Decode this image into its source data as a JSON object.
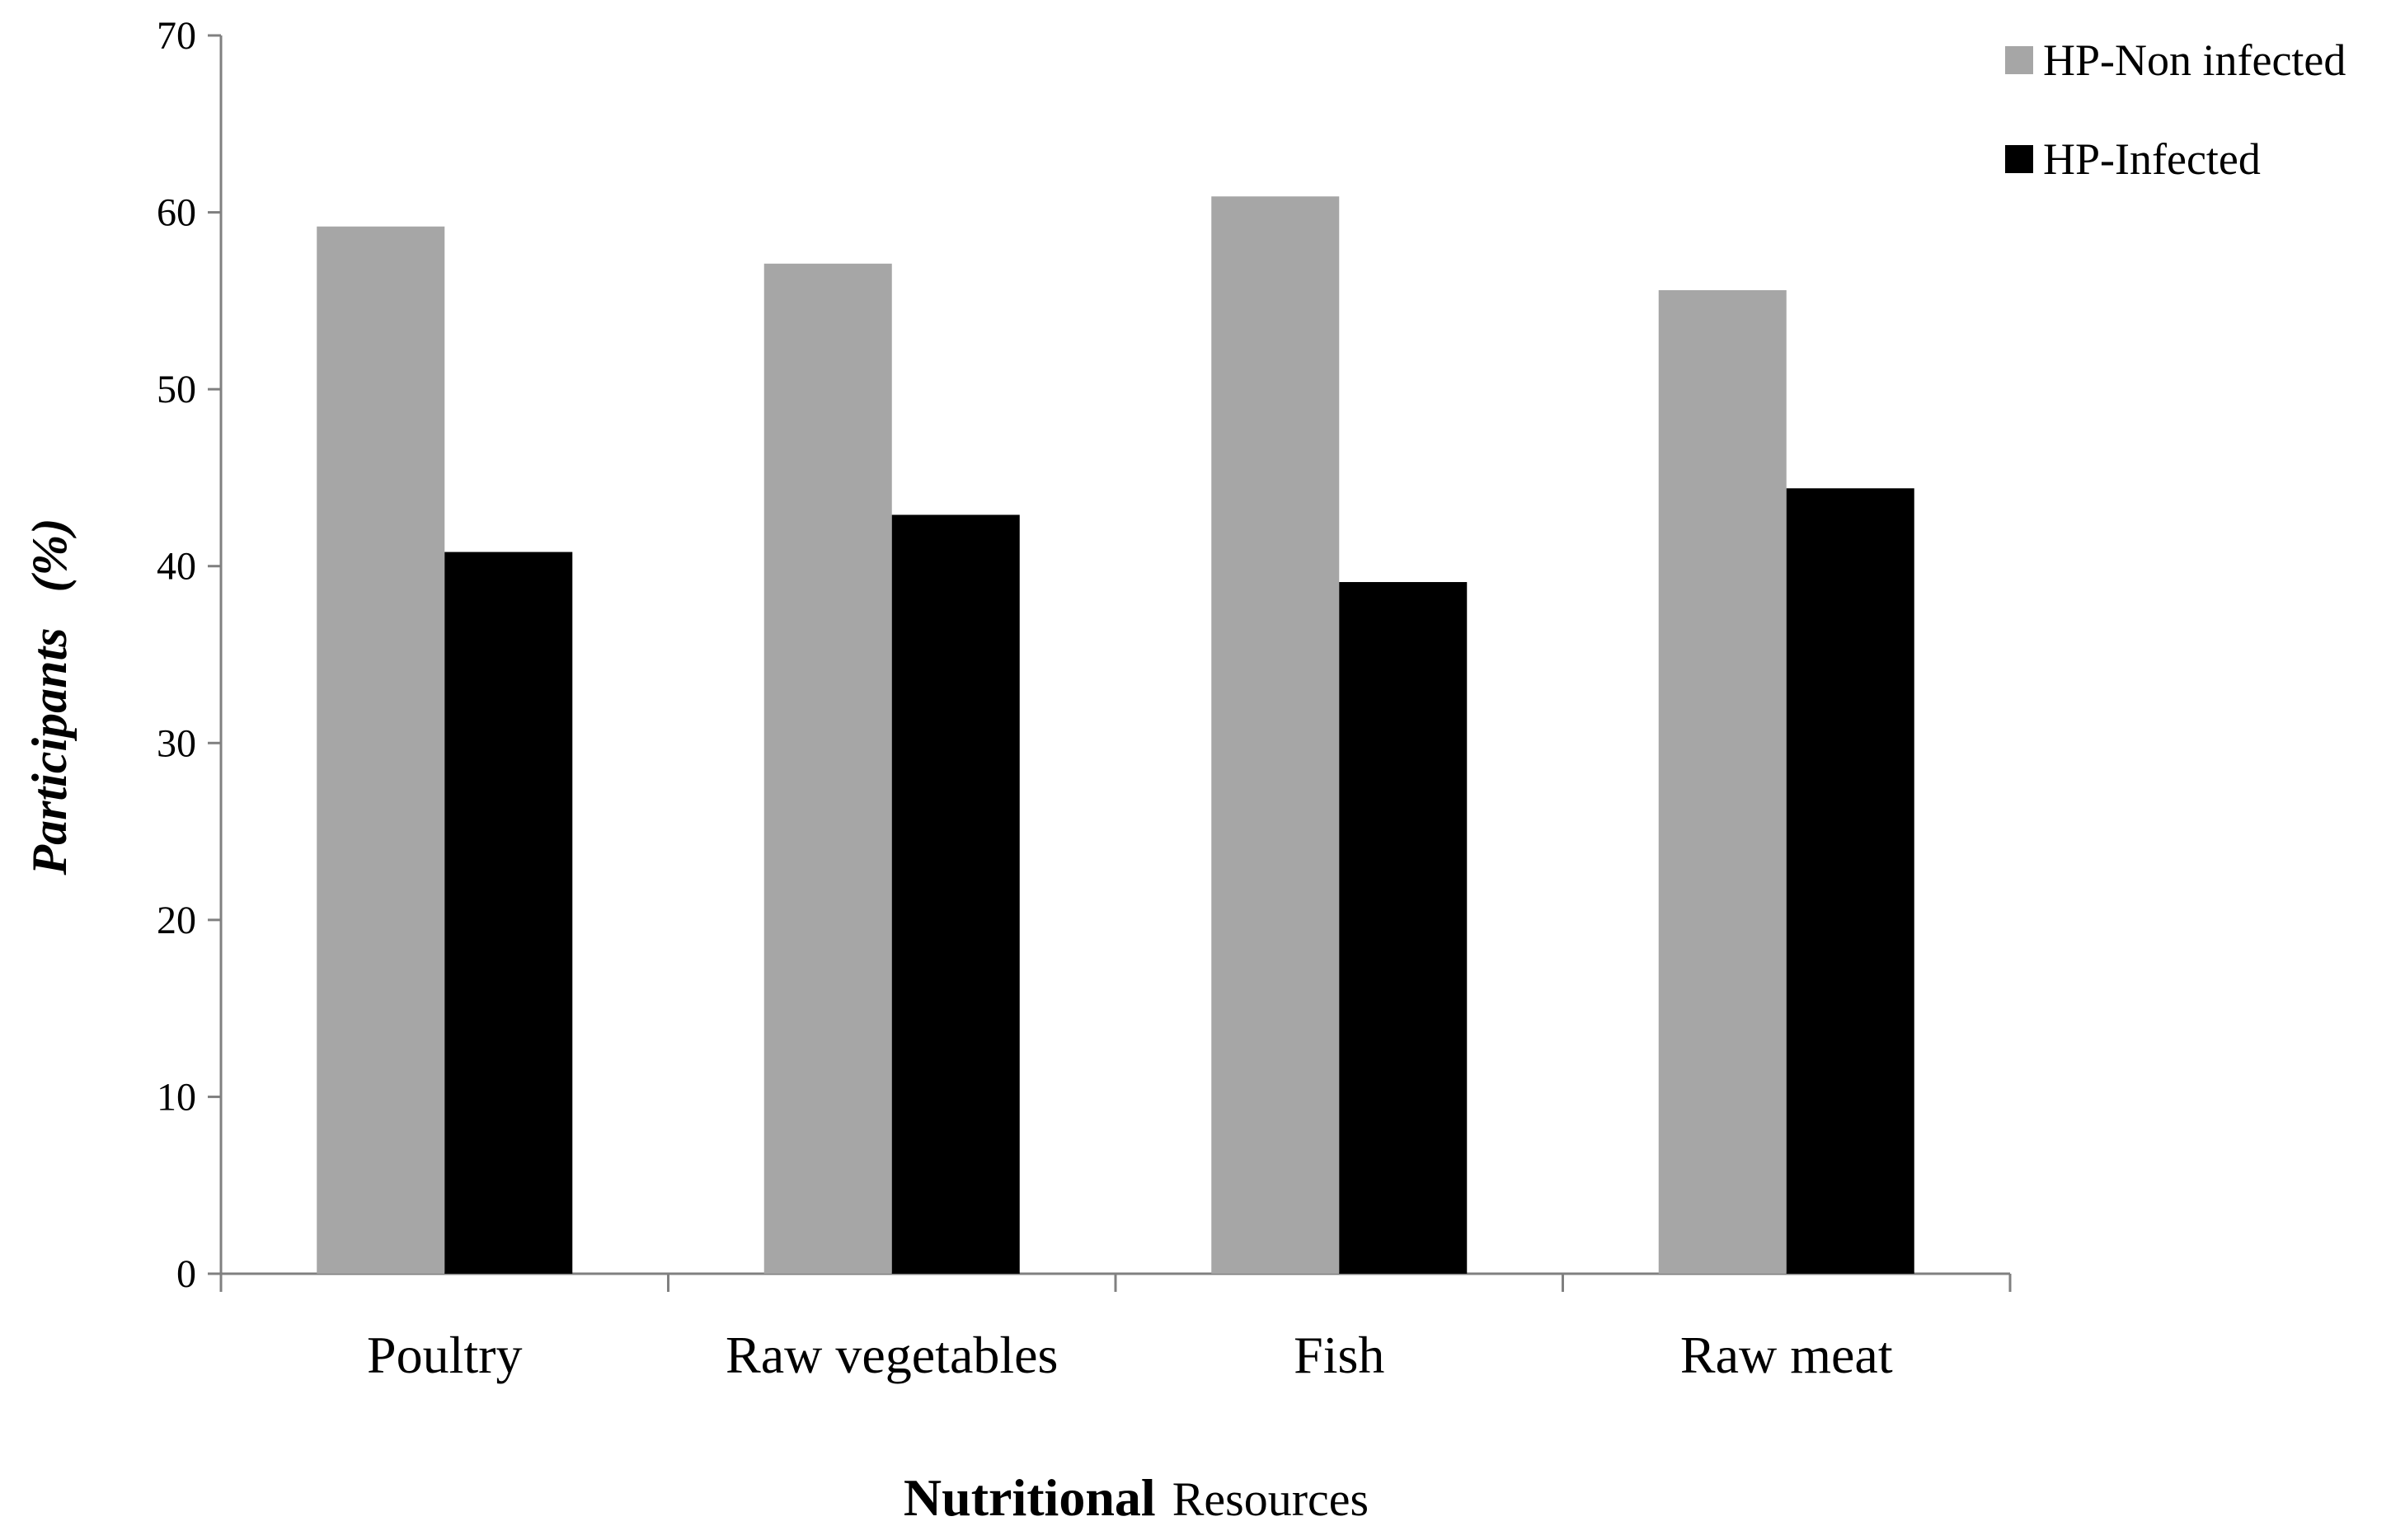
{
  "chart_data": {
    "type": "bar",
    "title": "",
    "categories": [
      "Poultry",
      "Raw vegetables",
      "Fish",
      "Raw meat"
    ],
    "series": [
      {
        "name": "HP-Non infected",
        "color": "#a6a6a6",
        "values": [
          59.2,
          57.1,
          60.9,
          55.6
        ]
      },
      {
        "name": "HP-Infected",
        "color": "#000000",
        "values": [
          40.8,
          42.9,
          39.1,
          44.4
        ]
      }
    ],
    "xlabel": {
      "bold_part": "Nutritional",
      "normal_part": "Resources"
    },
    "ylabel": {
      "main": "Participants",
      "unit": "(%)"
    },
    "ylim": [
      0,
      70
    ],
    "yticks": [
      "0",
      "10",
      "20",
      "30",
      "40",
      "50",
      "60",
      "70"
    ],
    "grid": false,
    "legend_position": "top-right"
  }
}
